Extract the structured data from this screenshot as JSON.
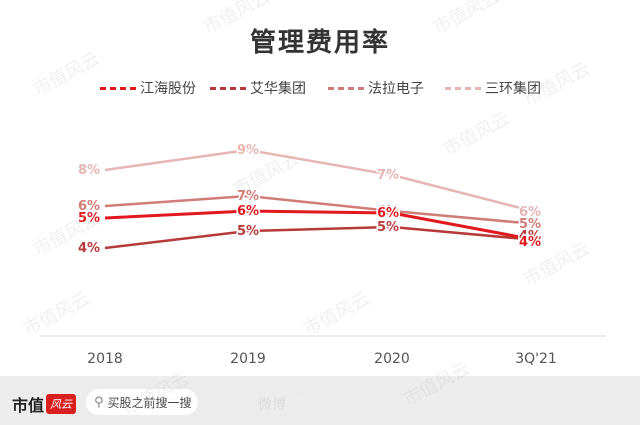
{
  "chart_data": {
    "type": "line",
    "title": "管理费用率",
    "categories": [
      "2018",
      "2019",
      "2020",
      "3Q'21"
    ],
    "series": [
      {
        "name": "江海股份",
        "color": "#e1191f",
        "values": [
          5,
          6,
          6,
          4
        ],
        "labels": [
          "5%",
          "6%",
          "6%",
          "4%"
        ]
      },
      {
        "name": "艾华集团",
        "color": "#b73a3a",
        "values": [
          4,
          5,
          5,
          4
        ],
        "labels": [
          "4%",
          "5%",
          "5%",
          "4%"
        ]
      },
      {
        "name": "法拉电子",
        "color": "#d07c77",
        "values": [
          6,
          7,
          6,
          5
        ],
        "labels": [
          "6%",
          "7%",
          "6%",
          "5%"
        ]
      },
      {
        "name": "三环集团",
        "color": "#e5b6b3",
        "values": [
          8,
          9,
          7,
          6
        ],
        "labels": [
          "8%",
          "9%",
          "7%",
          "6%"
        ]
      }
    ],
    "grid": false,
    "legend_position": "top"
  },
  "footer": {
    "logo_text": "市值",
    "logo_badge": "风云",
    "search_label": "买股之前搜一搜",
    "brand_text": "市值风云APP",
    "weibo_mark": "微博"
  },
  "watermark": "市值风云"
}
